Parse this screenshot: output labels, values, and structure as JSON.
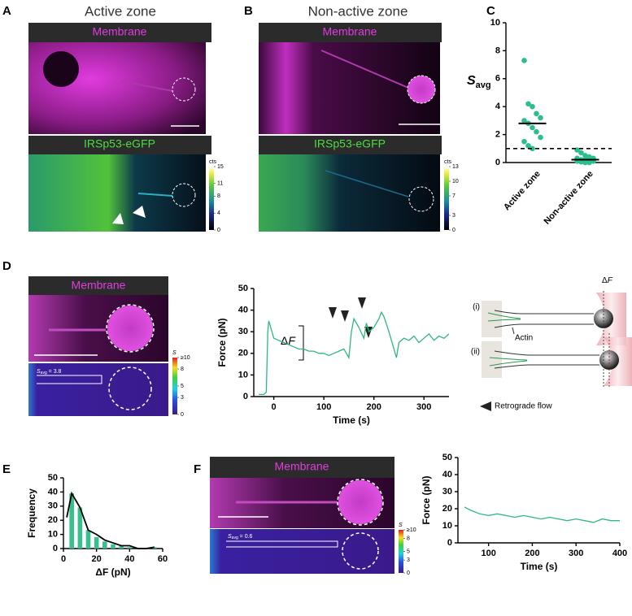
{
  "panels": {
    "A": {
      "letter": "A",
      "title": "Active zone",
      "top_label": "Membrane",
      "bottom_label": "IRSp53-eGFP",
      "colorbar": {
        "title": "cts",
        "lim": [
          0,
          15
        ],
        "ticks": [
          0,
          4,
          8,
          11,
          15
        ]
      }
    },
    "B": {
      "letter": "B",
      "title": "Non-active zone",
      "top_label": "Membrane",
      "bottom_label": "IRSp53-eGFP",
      "colorbar": {
        "title": "cts",
        "lim": [
          0,
          13
        ],
        "ticks": [
          0,
          3,
          7,
          10,
          13
        ]
      }
    },
    "C": {
      "letter": "C"
    },
    "D": {
      "letter": "D",
      "top_label": "Membrane",
      "colorbar": {
        "title": "S",
        "lim": [
          0,
          10
        ],
        "ticks": [
          0,
          3,
          5,
          8,
          {
            "value": 10,
            "label": "≥10"
          }
        ]
      },
      "savg": {
        "symbol": "S",
        "subscript": "avg",
        "text": " = 3.8"
      },
      "delta_f": {
        "symbol": "Δ",
        "italic": "F"
      },
      "schematic": {
        "state_1": "(i)",
        "state_2": "(ii)",
        "delta": "Δ",
        "delta_italic": "F",
        "actin": "Actin",
        "flow": "Retrograde flow"
      }
    },
    "E": {
      "letter": "E"
    },
    "F": {
      "letter": "F",
      "top_label": "Membrane",
      "colorbar": {
        "title": "S",
        "lim": [
          0,
          10
        ],
        "ticks": [
          0,
          3,
          5,
          8,
          {
            "value": 10,
            "label": "≥10"
          }
        ]
      },
      "savg": {
        "symbol": "S",
        "subscript": "avg",
        "text": " = 0.6"
      }
    }
  },
  "chart_data": [
    {
      "type": "strip",
      "ylabel": "S",
      "ylabel_sub": "avg",
      "categories": [
        "Active zone",
        "Non-active zone"
      ],
      "values": [
        [
          7.3,
          4.2,
          4.0,
          3.5,
          3.2,
          3.0,
          2.8,
          2.5,
          2.2,
          1.8,
          1.5,
          1.2,
          1.0
        ],
        [
          0.9,
          0.7,
          0.5,
          0.4,
          0.3,
          0.3,
          0.2,
          0.2,
          0.15,
          0.1,
          0.1,
          0.05,
          0,
          0
        ]
      ],
      "means": [
        2.8,
        0.2
      ],
      "threshold": 1,
      "color": "#2dbf8b",
      "ylim": [
        0,
        10
      ],
      "yticks": [
        0,
        2,
        4,
        6,
        8,
        10
      ]
    },
    {
      "type": "line",
      "xlabel": "Time (s)",
      "ylabel": "Force (pN)",
      "color": "#2fb87e",
      "x": [
        -30,
        -20,
        -15,
        -12,
        -10,
        0,
        10,
        20,
        30,
        40,
        50,
        60,
        70,
        80,
        90,
        100,
        110,
        120,
        130,
        140,
        150,
        155,
        160,
        170,
        180,
        185,
        190,
        200,
        210,
        215,
        220,
        230,
        240,
        245,
        250,
        260,
        270,
        280,
        290,
        300,
        310,
        320,
        330,
        340,
        350
      ],
      "values": [
        1,
        1,
        2,
        30,
        35,
        27,
        26,
        25,
        24,
        23,
        22,
        22,
        21,
        21,
        20,
        20,
        19,
        20,
        21,
        22,
        18,
        30,
        36,
        32,
        27,
        34,
        30,
        32,
        36,
        39,
        37,
        30,
        22,
        18,
        25,
        27,
        26,
        28,
        25,
        27,
        29,
        26,
        28,
        27,
        29
      ],
      "xlim": [
        -40,
        350
      ],
      "xticks": [
        0,
        100,
        200,
        300
      ],
      "ylim": [
        0,
        50
      ],
      "yticks": [
        0,
        10,
        20,
        30,
        40,
        50
      ]
    },
    {
      "type": "histogram",
      "xlabel": "ΔF (pN)",
      "ylabel": "Frequency",
      "color": "#35c08d",
      "bins": [
        2.5,
        7.5,
        12.5,
        17.5,
        22.5,
        27.5,
        32.5,
        37.5,
        42.5,
        47.5,
        52.5,
        57.5
      ],
      "values": [
        39,
        29,
        13,
        8,
        5,
        3,
        2,
        1,
        0,
        0,
        1
      ],
      "fit": {
        "x": [
          2,
          5,
          10,
          15,
          20,
          25,
          30,
          35,
          40,
          45,
          50,
          55
        ],
        "values": [
          22,
          39,
          29,
          13,
          10,
          6,
          4,
          2,
          2,
          0,
          0,
          1
        ],
        "color": "#000000"
      },
      "xlim": [
        0,
        60
      ],
      "xticks": [
        0,
        20,
        40,
        60
      ],
      "ylim": [
        0,
        50
      ],
      "yticks": [
        0,
        10,
        20,
        30,
        40,
        50
      ]
    },
    {
      "type": "line",
      "xlabel": "Time (s)",
      "ylabel": "Force (pN)",
      "color": "#2fb87e",
      "x": [
        45,
        60,
        80,
        100,
        120,
        140,
        160,
        180,
        200,
        220,
        240,
        260,
        280,
        300,
        320,
        340,
        360,
        380,
        400
      ],
      "values": [
        21,
        19,
        17,
        16,
        17,
        16,
        15,
        16,
        15,
        14,
        15,
        14,
        13,
        14,
        13,
        12,
        14,
        13,
        13
      ],
      "xlim": [
        30,
        400
      ],
      "xticks": [
        100,
        200,
        300,
        400
      ],
      "ylim": [
        0,
        50
      ],
      "yticks": [
        0,
        10,
        20,
        30,
        40,
        50
      ]
    }
  ]
}
